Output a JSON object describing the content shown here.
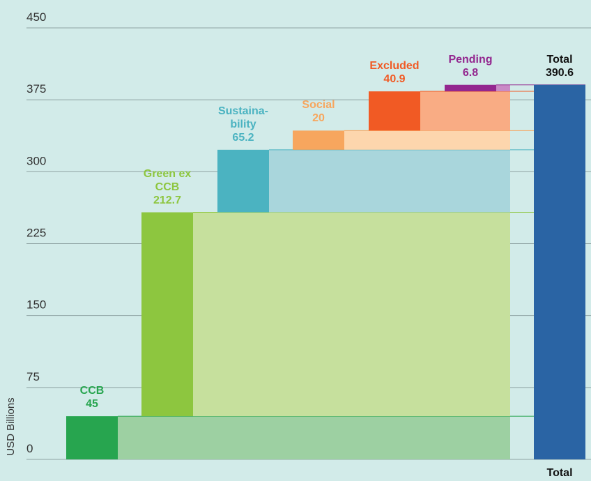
{
  "chart_data": {
    "type": "waterfall",
    "y_axis_label": "USD Billions",
    "ylim": [
      0,
      450
    ],
    "yticks": [
      0,
      75,
      150,
      225,
      300,
      375,
      450
    ],
    "categories": [
      "CCB",
      "Green ex CCB",
      "Sustaina-bility",
      "Social",
      "Excluded",
      "Pending"
    ],
    "values": [
      45,
      212.7,
      65.2,
      20,
      40.9,
      6.8
    ],
    "colors": [
      "#27a54f",
      "#8dc63f",
      "#4bb3c1",
      "#f7a65e",
      "#f15a24",
      "#93278f"
    ],
    "light_colors": [
      "#9dd0a2",
      "#c6e09d",
      "#a9d6dc",
      "#fdd6ad",
      "#f9ac84",
      "#c98bc6"
    ],
    "total": {
      "name": "Total",
      "value": 390.6,
      "color": "#2a64a4"
    },
    "total_axis_label": "Total"
  }
}
